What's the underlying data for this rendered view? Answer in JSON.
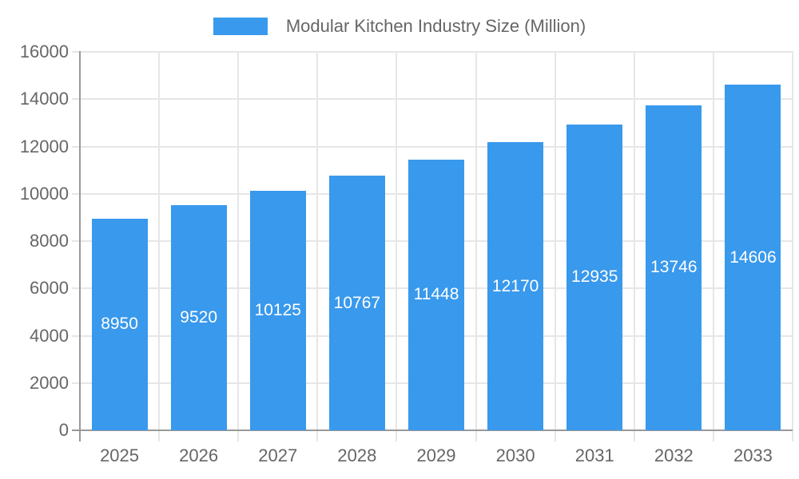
{
  "chart_data": {
    "type": "bar",
    "title": "",
    "legend": "Modular Kitchen Industry Size (Million)",
    "categories": [
      "2025",
      "2026",
      "2027",
      "2028",
      "2029",
      "2030",
      "2031",
      "2032",
      "2033"
    ],
    "values": [
      8950,
      9520,
      10125,
      10767,
      11448,
      12170,
      12935,
      13746,
      14606
    ],
    "value_labels_shown": true,
    "xlabel": "",
    "ylabel": "",
    "ylim": [
      0,
      16000
    ],
    "ytick_step": 2000,
    "ytick_labels": [
      "0",
      "2000",
      "4000",
      "6000",
      "8000",
      "10000",
      "12000",
      "14000",
      "16000"
    ],
    "legend_position": "top",
    "grid": true,
    "colors": {
      "bar": "#3999EC",
      "grid": "#E6E6E6",
      "axis": "#999999",
      "tick_text": "#666666",
      "legend_text": "#666666",
      "value_text": "#FFFFFF",
      "background": "#FFFFFF"
    }
  }
}
